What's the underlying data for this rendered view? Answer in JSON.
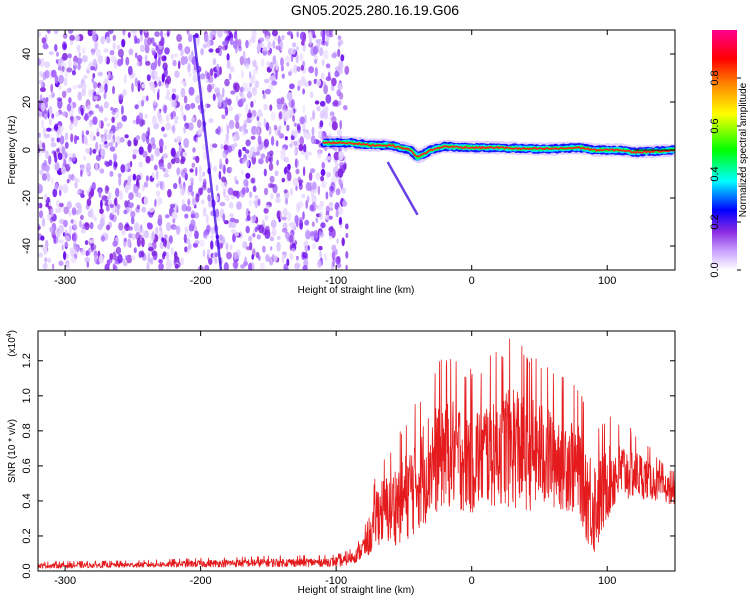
{
  "page": {
    "title": "GN05.2025.280.16.19.G06"
  },
  "chart_data": [
    {
      "type": "heatmap",
      "title": "GN05.2025.280.16.19.G06",
      "xlabel": "Height of straight line (km)",
      "ylabel": "Frequency (Hz)",
      "xlim": [
        -320,
        150
      ],
      "ylim": [
        -50,
        50
      ],
      "xticks": [
        "-300",
        "-200",
        "-100",
        "0",
        "100"
      ],
      "xtick_values": [
        -300,
        -200,
        -100,
        0,
        100
      ],
      "yticks": [
        "-40",
        "-20",
        "0",
        "20",
        "40"
      ],
      "ytick_values": [
        -40,
        -20,
        0,
        20,
        40
      ],
      "colorbar": {
        "label": "Normalized spectral amplitude",
        "range": [
          0,
          1
        ],
        "ticks": [
          "0.0",
          "0.2",
          "0.4",
          "0.6",
          "0.8"
        ],
        "tick_values": [
          0.0,
          0.2,
          0.4,
          0.6,
          0.8
        ],
        "colormap": [
          "#ffffff",
          "#8a2be2",
          "#0000ff",
          "#00ffff",
          "#00ff00",
          "#ffff00",
          "#ff8000",
          "#ff0000",
          "#ff00a0"
        ]
      },
      "noise_region_x": [
        -320,
        -92
      ],
      "signal_band": {
        "x": [
          -110,
          -90,
          -75,
          -60,
          -45,
          -40,
          -30,
          -20,
          0,
          20,
          40,
          60,
          80,
          90,
          100,
          110,
          120,
          150
        ],
        "freq": [
          3,
          3,
          2,
          2,
          0,
          -3,
          0,
          1.5,
          1,
          1,
          0.5,
          0.5,
          1,
          0,
          0,
          0,
          -1,
          0
        ]
      },
      "faint_streaks": [
        {
          "x": [
            -205,
            -185
          ],
          "freq": [
            48,
            -50
          ]
        },
        {
          "x": [
            -62,
            -40
          ],
          "freq": [
            -5,
            -27
          ]
        }
      ]
    },
    {
      "type": "line",
      "xlabel": "Height of straight line (km)",
      "ylabel": "SNR (10 * v/v)",
      "y_scale_label": "(x10",
      "y_scale_exponent": "4",
      "xlim": [
        -320,
        150
      ],
      "ylim": [
        0,
        13700
      ],
      "xticks": [
        "-300",
        "-200",
        "-100",
        "0",
        "100"
      ],
      "xtick_values": [
        -300,
        -200,
        -100,
        0,
        100
      ],
      "yticks": [
        "0.0",
        "0.2",
        "0.4",
        "0.6",
        "0.8",
        "1.0",
        "1.2"
      ],
      "ytick_values": [
        0,
        2000,
        4000,
        6000,
        8000,
        10000,
        12000
      ],
      "series": [
        {
          "name": "SNR",
          "color": "#e41a1c",
          "envelope_x": [
            -320,
            -250,
            -200,
            -150,
            -110,
            -95,
            -85,
            -75,
            -70,
            -60,
            -50,
            -40,
            -30,
            -20,
            -10,
            0,
            10,
            20,
            30,
            40,
            50,
            60,
            70,
            80,
            85,
            90,
            95,
            100,
            110,
            120,
            130,
            140,
            150
          ],
          "envelope_mean": [
            300,
            350,
            420,
            480,
            500,
            550,
            900,
            1800,
            3300,
            3600,
            4200,
            5200,
            6200,
            7000,
            6700,
            6400,
            6800,
            7200,
            7300,
            7000,
            6800,
            6600,
            6400,
            5800,
            4500,
            3800,
            4200,
            5200,
            5700,
            5600,
            5300,
            4800,
            4500
          ],
          "envelope_spread": [
            150,
            150,
            200,
            250,
            250,
            300,
            400,
            900,
            1800,
            2200,
            2600,
            3000,
            3200,
            3400,
            3300,
            3200,
            3300,
            3500,
            3800,
            3600,
            3300,
            3100,
            3000,
            2800,
            2900,
            3000,
            2700,
            2300,
            1800,
            1500,
            1200,
            900,
            700
          ]
        }
      ]
    }
  ]
}
